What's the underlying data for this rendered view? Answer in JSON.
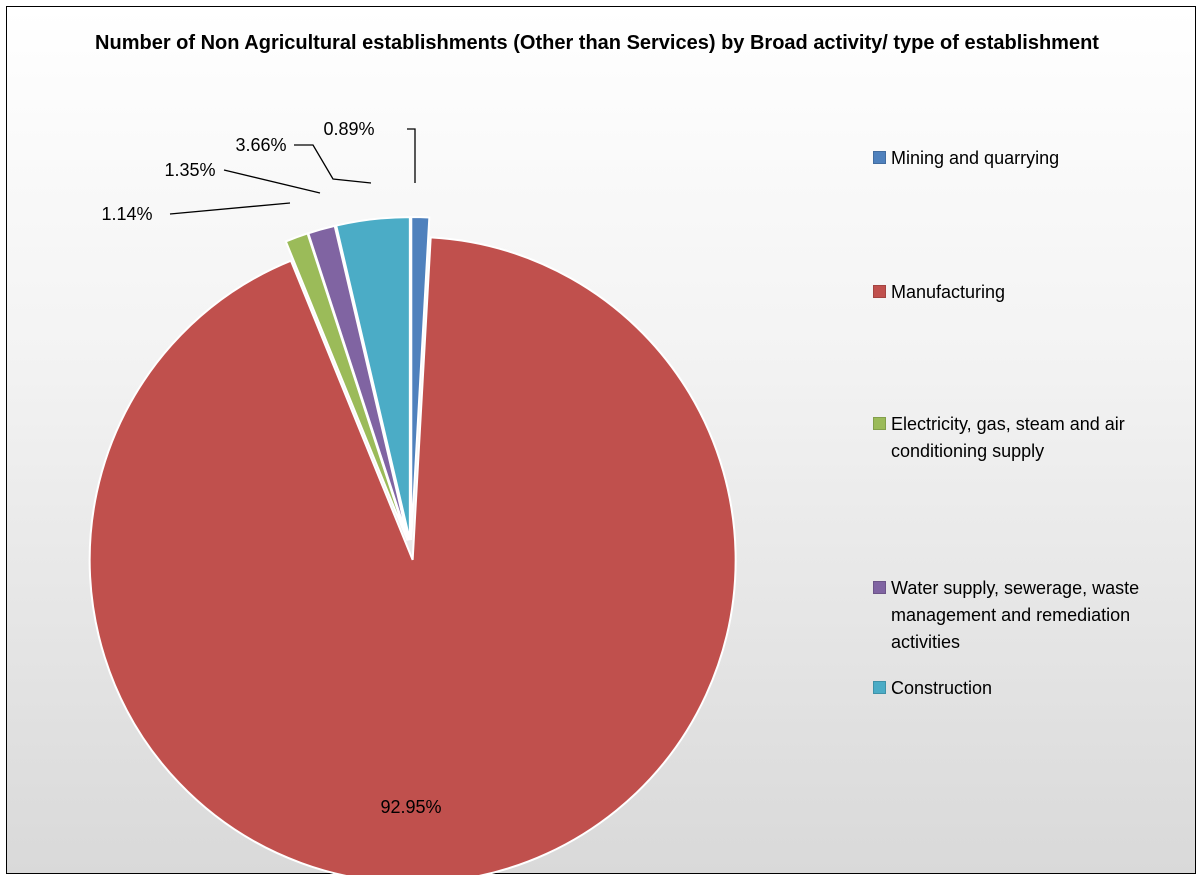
{
  "chart_data": {
    "type": "pie",
    "title": "Number of Non Agricultural establishments (Other than Services) by Broad activity/ type of establishment",
    "legend_position": "right",
    "slices": [
      {
        "name": "Mining and quarrying",
        "value": 0.89,
        "label": "0.89%",
        "color": "#4F81BD"
      },
      {
        "name": "Manufacturing",
        "value": 92.95,
        "label": "92.95%",
        "color": "#C0504D"
      },
      {
        "name": "Electricity, gas, steam and air conditioning supply",
        "value": 1.14,
        "label": "1.14%",
        "color": "#9BBB59"
      },
      {
        "name": "Water supply, sewerage, waste management and remediation activities",
        "value": 1.35,
        "label": "1.35%",
        "color": "#8064A2"
      },
      {
        "name": "Construction",
        "value": 3.66,
        "label": "3.66%",
        "color": "#4BACC6"
      }
    ]
  }
}
